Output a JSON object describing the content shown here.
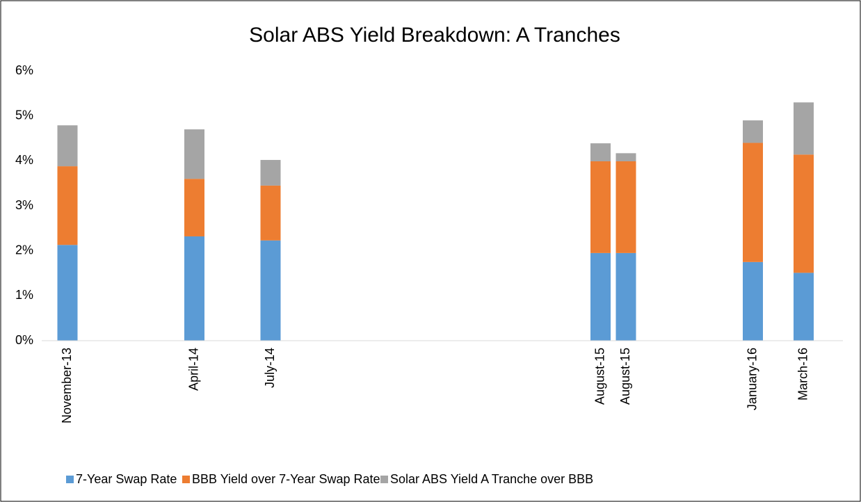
{
  "chart_data": {
    "type": "stacked_bar",
    "title": "Solar ABS Yield Breakdown: A Tranches",
    "categories": [
      "November-13",
      null,
      null,
      null,
      null,
      "April-14",
      null,
      null,
      "July-14",
      null,
      null,
      null,
      null,
      null,
      null,
      null,
      null,
      null,
      null,
      null,
      null,
      "August-15",
      "August-15",
      null,
      null,
      null,
      null,
      "January-16",
      null,
      "March-16",
      null
    ],
    "series": [
      {
        "name": "7-Year Swap Rate",
        "color": "#5b9bd5",
        "values": [
          2.13,
          null,
          null,
          null,
          null,
          2.32,
          null,
          null,
          2.23,
          null,
          null,
          null,
          null,
          null,
          null,
          null,
          null,
          null,
          null,
          null,
          null,
          1.95,
          1.95,
          null,
          null,
          null,
          null,
          1.75,
          null,
          1.51,
          null
        ]
      },
      {
        "name": "BBB Yield over 7-Year Swap Rate",
        "color": "#ed7d31",
        "values": [
          1.75,
          null,
          null,
          null,
          null,
          1.28,
          null,
          null,
          1.22,
          null,
          null,
          null,
          null,
          null,
          null,
          null,
          null,
          null,
          null,
          null,
          null,
          2.04,
          2.04,
          null,
          null,
          null,
          null,
          2.65,
          null,
          2.63,
          null
        ]
      },
      {
        "name": "Solar ABS Yield A Tranche over BBB",
        "color": "#a5a5a5",
        "values": [
          0.91,
          null,
          null,
          null,
          null,
          1.1,
          null,
          null,
          0.57,
          null,
          null,
          null,
          null,
          null,
          null,
          null,
          null,
          null,
          null,
          null,
          null,
          0.4,
          0.18,
          null,
          null,
          null,
          null,
          0.5,
          null,
          1.16,
          null
        ]
      }
    ],
    "ylim": [
      0,
      6
    ],
    "yticks": [
      {
        "value": 0,
        "label": "0%"
      },
      {
        "value": 1,
        "label": "1%"
      },
      {
        "value": 2,
        "label": "2%"
      },
      {
        "value": 3,
        "label": "3%"
      },
      {
        "value": 4,
        "label": "4%"
      },
      {
        "value": 5,
        "label": "5%"
      },
      {
        "value": 6,
        "label": "6%"
      }
    ],
    "grid": false,
    "legend": "bottom"
  }
}
